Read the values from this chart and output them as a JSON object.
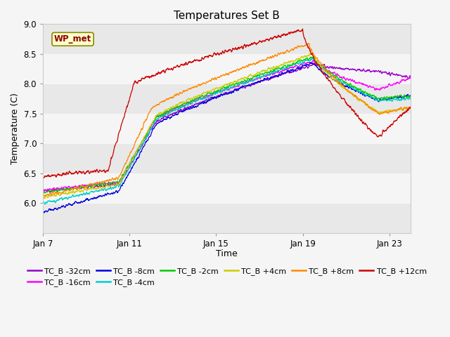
{
  "title": "Temperatures Set B",
  "xlabel": "Time",
  "ylabel": "Temperature (C)",
  "ylim": [
    5.5,
    9.0
  ],
  "y_ticks": [
    6.0,
    6.5,
    7.0,
    7.5,
    8.0,
    8.5,
    9.0
  ],
  "x_ticks_days": [
    0,
    4,
    8,
    12,
    16
  ],
  "x_tick_labels": [
    "Jan 7",
    "Jan 11",
    "Jan 15",
    "Jan 19",
    "Jan 23"
  ],
  "annotation_text": "WP_met",
  "background_color": "#f5f5f5",
  "plot_bg_color": "#e8e8e8",
  "band_color": "#f5f5f5",
  "grid_color": "#f5f5f5",
  "series": [
    {
      "label": "TC_B -32cm",
      "color": "#9900cc"
    },
    {
      "label": "TC_B -16cm",
      "color": "#ff00ff"
    },
    {
      "label": "TC_B -8cm",
      "color": "#0000dd"
    },
    {
      "label": "TC_B -4cm",
      "color": "#00cccc"
    },
    {
      "label": "TC_B -2cm",
      "color": "#00cc00"
    },
    {
      "label": "TC_B +4cm",
      "color": "#cccc00"
    },
    {
      "label": "TC_B +8cm",
      "color": "#ff8800"
    },
    {
      "label": "TC_B +12cm",
      "color": "#cc0000"
    }
  ],
  "legend_ncol": 6,
  "legend_fontsize": 8,
  "title_fontsize": 11,
  "axis_fontsize": 9,
  "tick_fontsize": 8.5
}
